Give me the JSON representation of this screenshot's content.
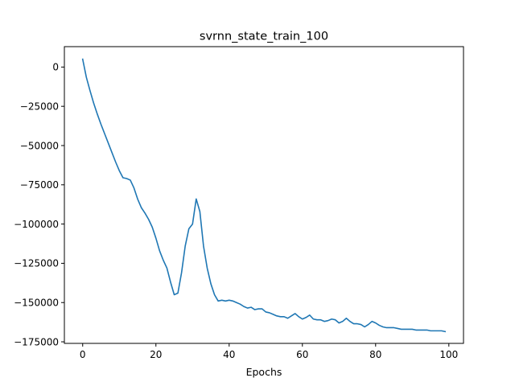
{
  "chart_data": {
    "type": "line",
    "title": "svrnn_state_train_100",
    "xlabel": "Epochs",
    "ylabel": "",
    "xlim": [
      -5,
      104
    ],
    "ylim": [
      -176000,
      13000
    ],
    "x_ticks": [
      0,
      20,
      40,
      60,
      80,
      100
    ],
    "y_ticks": [
      0,
      -25000,
      -50000,
      -75000,
      -100000,
      -125000,
      -150000,
      -175000
    ],
    "x_tick_labels": [
      "0",
      "20",
      "40",
      "60",
      "80",
      "100"
    ],
    "y_tick_labels": [
      "0",
      "−25000",
      "−50000",
      "−75000",
      "−100000",
      "−125000",
      "−150000",
      "−175000"
    ],
    "grid": false,
    "line_color": "#1f77b4",
    "series": [
      {
        "x": [
          0,
          1,
          2,
          3,
          4,
          5,
          6,
          7,
          8,
          9,
          10,
          11,
          12,
          13,
          14,
          15,
          16,
          17,
          18,
          19,
          20,
          21,
          22,
          23,
          24,
          25,
          26,
          27,
          28,
          29,
          30,
          31,
          32,
          33,
          34,
          35,
          36,
          37,
          38,
          39,
          40,
          41,
          42,
          43,
          44,
          45,
          46,
          47,
          48,
          49,
          50,
          51,
          52,
          53,
          54,
          55,
          56,
          57,
          58,
          59,
          60,
          61,
          62,
          63,
          64,
          65,
          66,
          67,
          68,
          69,
          70,
          71,
          72,
          73,
          74,
          75,
          76,
          77,
          78,
          79,
          80,
          81,
          82,
          83,
          84,
          85,
          86,
          87,
          88,
          89,
          90,
          91,
          92,
          93,
          94,
          95,
          96,
          97,
          98,
          99
        ],
        "y": [
          5000,
          -6500,
          -15000,
          -23000,
          -30000,
          -36500,
          -42500,
          -48500,
          -54500,
          -60500,
          -66000,
          -70500,
          -71000,
          -72000,
          -77000,
          -84000,
          -89500,
          -93000,
          -97000,
          -102000,
          -109000,
          -117000,
          -123000,
          -128000,
          -137000,
          -145000,
          -144000,
          -131000,
          -114000,
          -103000,
          -100000,
          -84000,
          -92000,
          -114000,
          -128000,
          -138000,
          -145000,
          -149000,
          -148500,
          -149000,
          -148500,
          -149000,
          -150000,
          -151000,
          -152500,
          -153500,
          -153000,
          -154500,
          -154000,
          -154000,
          -156000,
          -156500,
          -157500,
          -158500,
          -159000,
          -159000,
          -160000,
          -158500,
          -157000,
          -159000,
          -160500,
          -159500,
          -158000,
          -160500,
          -161000,
          -161000,
          -162000,
          -161500,
          -160500,
          -161000,
          -163000,
          -162000,
          -160000,
          -162000,
          -163500,
          -163500,
          -164000,
          -165500,
          -164000,
          -162000,
          -163000,
          -164500,
          -165500,
          -166000,
          -166000,
          -166000,
          -166500,
          -167000,
          -167000,
          -167000,
          -167000,
          -167500,
          -167500,
          -167500,
          -167500,
          -168000,
          -168000,
          -168000,
          -168000,
          -168500
        ]
      }
    ]
  }
}
